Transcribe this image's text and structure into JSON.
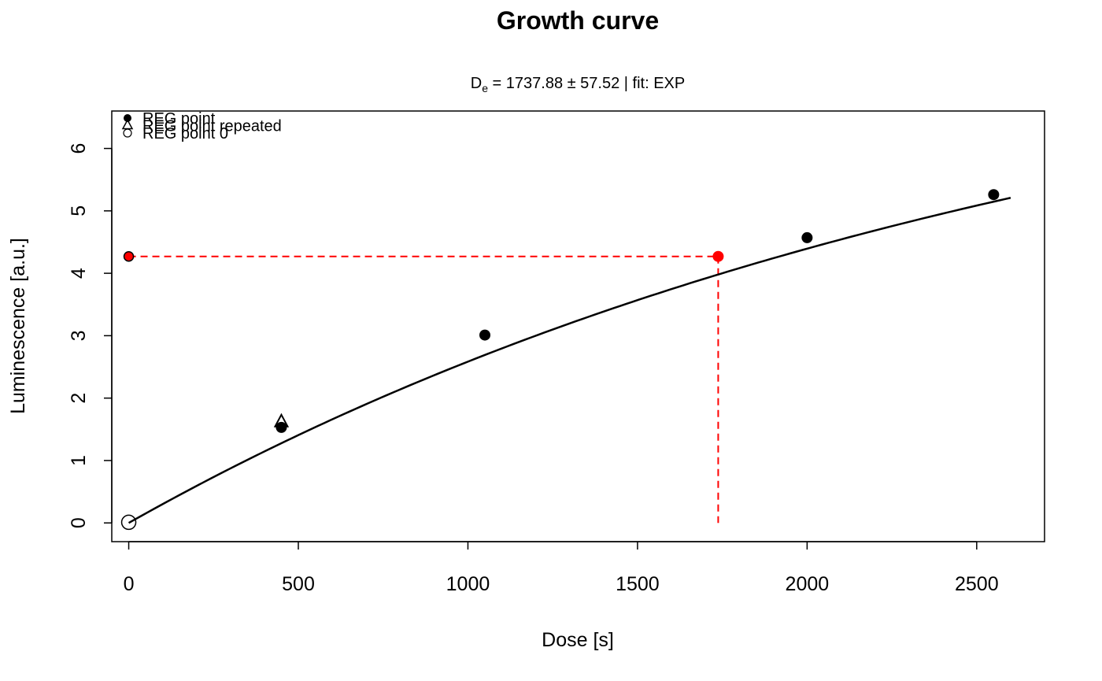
{
  "chart_data": {
    "type": "scatter",
    "title": "Growth curve",
    "subtitle": {
      "symbol": "D",
      "subscript": "e",
      "text": " = 1737.88 ± 57.52  | fit:  EXP"
    },
    "xlabel": "Dose [s]",
    "ylabel": "Luminescence [a.u.]",
    "xlim": [
      -50,
      2700
    ],
    "ylim": [
      -0.3,
      6.6
    ],
    "xticks": [
      0,
      500,
      1000,
      1500,
      2000,
      2500
    ],
    "yticks": [
      0,
      1,
      2,
      3,
      4,
      5,
      6
    ],
    "legend": {
      "placement": "top-left",
      "entries": [
        "REG point",
        "REG point repeated",
        "REG point 0"
      ]
    },
    "series": [
      {
        "name": "REG point",
        "marker": "filled-circle",
        "color": "#000000",
        "points": [
          [
            450,
            1.53
          ],
          [
            1050,
            3.01
          ],
          [
            2000,
            4.57
          ],
          [
            2550,
            5.26
          ]
        ]
      },
      {
        "name": "REG point repeated",
        "marker": "triangle",
        "color": "#000000",
        "points": [
          [
            450,
            1.62
          ]
        ]
      },
      {
        "name": "REG point 0",
        "marker": "open-circle",
        "color": "#000000",
        "points": [
          [
            0,
            0.01
          ]
        ]
      }
    ],
    "fit": {
      "model": "EXP",
      "a": 8.63,
      "D0": 2810,
      "x_range": [
        0,
        2600
      ],
      "color": "#000000"
    },
    "natural_signal": {
      "x": 0,
      "y": 4.27,
      "color": "#ff0000"
    },
    "de_point": {
      "x": 1737.88,
      "y": 4.27,
      "color": "#ff0000"
    },
    "colors": {
      "guide": "#ff0000",
      "axis": "#000000",
      "background": "#ffffff"
    }
  }
}
